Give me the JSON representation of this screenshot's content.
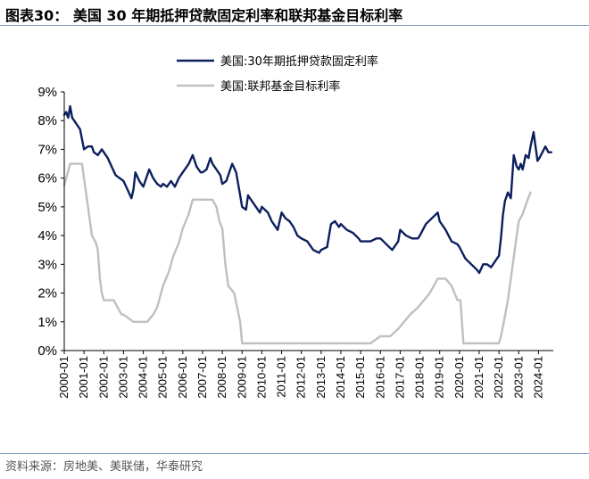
{
  "figure_title": "图表30： 美国 30 年期抵押贷款固定利率和联邦基金目标利率",
  "source": "资料来源：房地美、美联储，华泰研究",
  "chart_data": {
    "type": "line",
    "title": "",
    "xlabel": "",
    "ylabel": "",
    "ylim": [
      0,
      9
    ],
    "y_ticks": [
      "0%",
      "1%",
      "2%",
      "3%",
      "4%",
      "5%",
      "6%",
      "7%",
      "8%",
      "9%"
    ],
    "x_ticks": [
      "2000-01",
      "2001-01",
      "2002-01",
      "2003-01",
      "2004-01",
      "2005-01",
      "2006-01",
      "2007-01",
      "2008-01",
      "2009-01",
      "2010-01",
      "2011-01",
      "2012-01",
      "2013-01",
      "2014-01",
      "2015-01",
      "2016-01",
      "2017-01",
      "2018-01",
      "2019-01",
      "2020-01",
      "2021-01",
      "2022-01",
      "2023-01",
      "2024-01"
    ],
    "xlim": [
      2000.0,
      2024.75
    ],
    "grid": false,
    "legend_position": "top-center",
    "series": [
      {
        "name": "美国:30年期抵押贷款固定利率",
        "color": "#0c1f5e",
        "x": [
          2000.0,
          2000.1,
          2000.2,
          2000.3,
          2000.4,
          2000.5,
          2000.6,
          2000.8,
          2001.0,
          2001.2,
          2001.4,
          2001.5,
          2001.7,
          2001.9,
          2002.0,
          2002.2,
          2002.4,
          2002.6,
          2002.8,
          2003.0,
          2003.2,
          2003.4,
          2003.5,
          2003.6,
          2003.8,
          2004.0,
          2004.2,
          2004.3,
          2004.5,
          2004.7,
          2004.9,
          2005.0,
          2005.2,
          2005.4,
          2005.6,
          2005.8,
          2006.0,
          2006.2,
          2006.3,
          2006.5,
          2006.7,
          2006.9,
          2007.0,
          2007.2,
          2007.4,
          2007.5,
          2007.7,
          2007.9,
          2008.0,
          2008.2,
          2008.4,
          2008.5,
          2008.7,
          2008.9,
          2009.0,
          2009.2,
          2009.3,
          2009.5,
          2009.7,
          2009.9,
          2010.0,
          2010.3,
          2010.5,
          2010.8,
          2011.0,
          2011.2,
          2011.4,
          2011.6,
          2011.8,
          2012.0,
          2012.3,
          2012.6,
          2012.9,
          2013.0,
          2013.3,
          2013.5,
          2013.7,
          2013.9,
          2014.0,
          2014.3,
          2014.6,
          2014.9,
          2015.0,
          2015.2,
          2015.5,
          2015.8,
          2016.0,
          2016.3,
          2016.6,
          2016.9,
          2017.0,
          2017.3,
          2017.6,
          2017.9,
          2018.0,
          2018.3,
          2018.6,
          2018.9,
          2019.0,
          2019.3,
          2019.6,
          2019.9,
          2020.0,
          2020.3,
          2020.6,
          2020.9,
          2021.0,
          2021.2,
          2021.4,
          2021.6,
          2021.8,
          2022.0,
          2022.1,
          2022.2,
          2022.3,
          2022.45,
          2022.6,
          2022.75,
          2022.9,
          2023.0,
          2023.1,
          2023.2,
          2023.35,
          2023.5,
          2023.6,
          2023.75,
          2023.85,
          2023.95,
          2024.05,
          2024.2,
          2024.35,
          2024.5,
          2024.65
        ],
        "values": [
          8.2,
          8.3,
          8.1,
          8.5,
          8.1,
          8.0,
          7.9,
          7.7,
          7.0,
          7.1,
          7.1,
          6.9,
          6.8,
          7.0,
          6.9,
          6.7,
          6.4,
          6.1,
          6.0,
          5.9,
          5.6,
          5.3,
          5.6,
          6.2,
          5.9,
          5.7,
          6.1,
          6.3,
          6.0,
          5.8,
          5.7,
          5.8,
          5.7,
          5.9,
          5.7,
          6.0,
          6.2,
          6.4,
          6.5,
          6.8,
          6.4,
          6.2,
          6.2,
          6.3,
          6.7,
          6.5,
          6.3,
          6.1,
          5.8,
          5.9,
          6.3,
          6.5,
          6.2,
          5.4,
          5.0,
          4.9,
          5.4,
          5.2,
          5.0,
          4.8,
          5.0,
          4.8,
          4.5,
          4.2,
          4.8,
          4.6,
          4.5,
          4.3,
          4.0,
          3.9,
          3.8,
          3.5,
          3.4,
          3.5,
          3.6,
          4.4,
          4.5,
          4.3,
          4.4,
          4.2,
          4.1,
          3.9,
          3.8,
          3.8,
          3.8,
          3.9,
          3.9,
          3.7,
          3.5,
          3.8,
          4.2,
          4.0,
          3.9,
          3.9,
          4.0,
          4.4,
          4.6,
          4.8,
          4.5,
          4.2,
          3.8,
          3.7,
          3.6,
          3.2,
          3.0,
          2.8,
          2.7,
          3.0,
          3.0,
          2.9,
          3.1,
          3.3,
          3.9,
          4.7,
          5.2,
          5.5,
          5.3,
          6.8,
          6.4,
          6.3,
          6.5,
          6.3,
          6.8,
          6.7,
          7.1,
          7.6,
          7.1,
          6.6,
          6.7,
          6.9,
          7.1,
          6.9,
          6.9
        ],
        "line_width": 2.4
      },
      {
        "name": "美国:联邦基金目标利率",
        "color": "#bfbfbf",
        "x": [
          2000.0,
          2000.1,
          2000.3,
          2000.5,
          2000.7,
          2000.9,
          2001.0,
          2001.2,
          2001.4,
          2001.6,
          2001.7,
          2001.8,
          2001.9,
          2002.0,
          2002.5,
          2002.9,
          2003.0,
          2003.5,
          2003.9,
          2004.2,
          2004.5,
          2004.7,
          2004.9,
          2005.0,
          2005.3,
          2005.5,
          2005.8,
          2006.0,
          2006.3,
          2006.5,
          2006.7,
          2007.0,
          2007.5,
          2007.7,
          2007.85,
          2008.0,
          2008.15,
          2008.3,
          2008.6,
          2008.9,
          2009.0,
          2010.0,
          2012.0,
          2014.0,
          2015.5,
          2016.0,
          2016.5,
          2016.9,
          2017.2,
          2017.5,
          2017.9,
          2018.2,
          2018.5,
          2018.9,
          2019.0,
          2019.3,
          2019.6,
          2019.9,
          2020.05,
          2020.2,
          2020.5,
          2021.0,
          2021.5,
          2022.0,
          2022.1,
          2022.25,
          2022.45,
          2022.6,
          2022.75,
          2022.9,
          2023.0,
          2023.2,
          2023.45,
          2023.6
        ],
        "values": [
          5.75,
          6.0,
          6.5,
          6.5,
          6.5,
          6.5,
          6.0,
          5.0,
          4.0,
          3.75,
          3.5,
          2.5,
          2.0,
          1.75,
          1.75,
          1.25,
          1.25,
          1.0,
          1.0,
          1.0,
          1.25,
          1.5,
          2.0,
          2.25,
          2.75,
          3.25,
          3.75,
          4.25,
          4.75,
          5.25,
          5.25,
          5.25,
          5.25,
          5.0,
          4.5,
          4.25,
          3.0,
          2.25,
          2.0,
          1.0,
          0.25,
          0.25,
          0.25,
          0.25,
          0.25,
          0.5,
          0.5,
          0.75,
          1.0,
          1.25,
          1.5,
          1.75,
          2.0,
          2.5,
          2.5,
          2.5,
          2.25,
          1.75,
          1.75,
          0.25,
          0.25,
          0.25,
          0.25,
          0.25,
          0.5,
          1.0,
          1.75,
          2.5,
          3.25,
          4.0,
          4.5,
          4.75,
          5.25,
          5.5
        ],
        "line_width": 2.4
      }
    ]
  }
}
